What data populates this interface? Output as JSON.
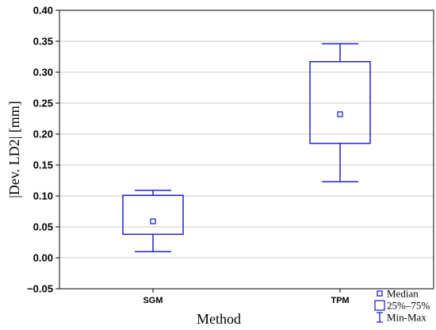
{
  "chart_data": {
    "type": "box",
    "xlabel": "Method",
    "ylabel": "|Dev. LD2| [mm]",
    "ylim": [
      -0.05,
      0.4
    ],
    "yticks": [
      -0.05,
      0.0,
      0.05,
      0.1,
      0.15,
      0.2,
      0.25,
      0.3,
      0.35,
      0.4
    ],
    "ytick_labels": [
      "−0.05",
      "0.00",
      "0.05",
      "0.10",
      "0.15",
      "0.20",
      "0.25",
      "0.30",
      "0.35",
      "0.40"
    ],
    "grid": true,
    "categories": [
      "SGM",
      "TPM"
    ],
    "boxes": [
      {
        "category": "SGM",
        "min": 0.01,
        "q1": 0.038,
        "median": 0.059,
        "q3": 0.101,
        "max": 0.109
      },
      {
        "category": "TPM",
        "min": 0.123,
        "q1": 0.185,
        "median": 0.232,
        "q3": 0.317,
        "max": 0.346
      }
    ],
    "legend": {
      "position": "bottom-right",
      "items": [
        "Median",
        "25%–75%",
        "Min-Max"
      ]
    },
    "color": "#1f24c8"
  }
}
